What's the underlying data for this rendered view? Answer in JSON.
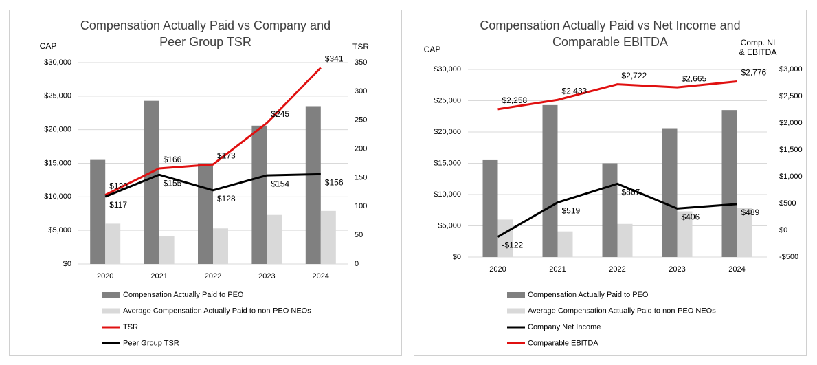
{
  "chart_data": [
    {
      "type": "combo",
      "title": "Compensation Actually Paid vs Company and Peer Group TSR",
      "y_label": "CAP",
      "y2_label": "TSR",
      "categories": [
        "2020",
        "2021",
        "2022",
        "2023",
        "2024"
      ],
      "ylim": [
        0,
        30000
      ],
      "yticks": [
        {
          "value": 0,
          "label": "$0"
        },
        {
          "value": 5000,
          "label": "$5,000"
        },
        {
          "value": 10000,
          "label": "$10,000"
        },
        {
          "value": 15000,
          "label": "$15,000"
        },
        {
          "value": 20000,
          "label": "$20,000"
        },
        {
          "value": 25000,
          "label": "$25,000"
        },
        {
          "value": 30000,
          "label": "$30,000"
        }
      ],
      "y2lim": [
        0,
        350
      ],
      "y2ticks": [
        0,
        50,
        100,
        150,
        200,
        250,
        300,
        350
      ],
      "grid": true,
      "legend": "bottom",
      "series": [
        {
          "name": "Compensation Actually Paid to PEO",
          "type": "bar",
          "color": "#808080",
          "values": [
            15500,
            24300,
            15000,
            20600,
            23500
          ]
        },
        {
          "name": "Average Compensation Actually Paid to non-PEO NEOs",
          "type": "bar",
          "color": "#d9d9d9",
          "values": [
            6000,
            4100,
            5300,
            7300,
            7900
          ]
        },
        {
          "name": "TSR",
          "type": "line",
          "axis": "y2",
          "color": "#e01010",
          "values": [
            120,
            166,
            173,
            245,
            341
          ],
          "value_labels": [
            "$120",
            "$166",
            "$173",
            "$245",
            "$341"
          ]
        },
        {
          "name": "Peer Group TSR",
          "type": "line",
          "axis": "y2",
          "color": "#000000",
          "values": [
            117,
            155,
            128,
            154,
            156
          ],
          "value_labels": [
            "$117",
            "$155",
            "$128",
            "$154",
            "$156"
          ]
        }
      ]
    },
    {
      "type": "combo",
      "title": "Compensation Actually Paid vs Net Income and Comparable EBITDA",
      "y_label": "CAP",
      "y2_label": "Comp. NI & EBITDA",
      "categories": [
        "2020",
        "2021",
        "2022",
        "2023",
        "2024"
      ],
      "ylim": [
        0,
        30000
      ],
      "yticks": [
        {
          "value": 0,
          "label": "$0"
        },
        {
          "value": 5000,
          "label": "$5,000"
        },
        {
          "value": 10000,
          "label": "$10,000"
        },
        {
          "value": 15000,
          "label": "$15,000"
        },
        {
          "value": 20000,
          "label": "$20,000"
        },
        {
          "value": 25000,
          "label": "$25,000"
        },
        {
          "value": 30000,
          "label": "$30,000"
        }
      ],
      "y2lim": [
        -500,
        3000
      ],
      "y2ticks": [
        {
          "value": -500,
          "label": "-$500"
        },
        {
          "value": 0,
          "label": "$0"
        },
        {
          "value": 500,
          "label": "$500"
        },
        {
          "value": 1000,
          "label": "$1,000"
        },
        {
          "value": 1500,
          "label": "$1,500"
        },
        {
          "value": 2000,
          "label": "$2,000"
        },
        {
          "value": 2500,
          "label": "$2,500"
        },
        {
          "value": 3000,
          "label": "$3,000"
        }
      ],
      "grid": true,
      "legend": "bottom",
      "series": [
        {
          "name": "Compensation Actually Paid to PEO",
          "type": "bar",
          "color": "#808080",
          "values": [
            15500,
            24300,
            15000,
            20600,
            23500
          ]
        },
        {
          "name": "Average Compensation Actually Paid to non-PEO NEOs",
          "type": "bar",
          "color": "#d9d9d9",
          "values": [
            6000,
            4100,
            5300,
            7300,
            7900
          ]
        },
        {
          "name": "Company Net Income",
          "type": "line",
          "axis": "y2",
          "color": "#000000",
          "values": [
            -122,
            519,
            867,
            406,
            489
          ],
          "value_labels": [
            "-$122",
            "$519",
            "$867",
            "$406",
            "$489"
          ]
        },
        {
          "name": "Comparable EBITDA",
          "type": "line",
          "axis": "y2",
          "color": "#e01010",
          "values": [
            2258,
            2433,
            2722,
            2665,
            2776
          ],
          "value_labels": [
            "$2,258",
            "$2,433",
            "$2,722",
            "$2,665",
            "$2,776"
          ]
        }
      ]
    }
  ]
}
